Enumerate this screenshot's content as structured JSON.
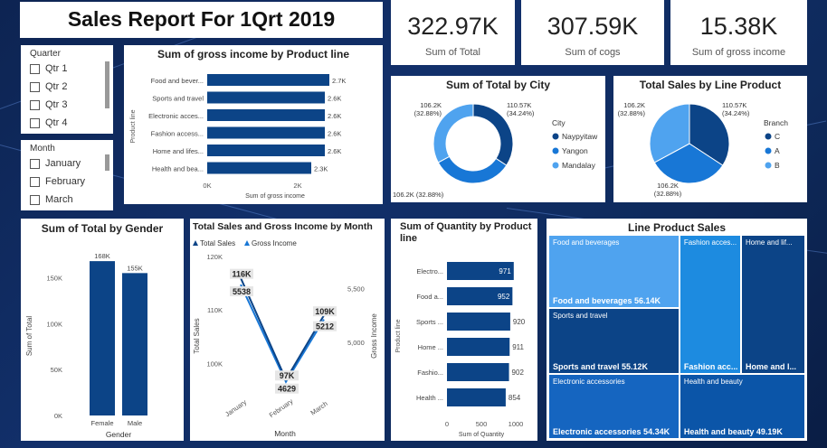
{
  "report_title": "Sales Report For 1Qrt 2019",
  "kpis": [
    {
      "value": "322.97K",
      "label": "Sum of Total"
    },
    {
      "value": "307.59K",
      "label": "Sum of cogs"
    },
    {
      "value": "15.38K",
      "label": "Sum of gross income"
    }
  ],
  "quarter_slicer": {
    "header": "Quarter",
    "items": [
      "Qtr 1",
      "Qtr 2",
      "Qtr 3",
      "Qtr 4"
    ]
  },
  "month_slicer": {
    "header": "Month",
    "items": [
      "January",
      "February",
      "March"
    ]
  },
  "colors": {
    "dark": "#0c4487",
    "mid": "#1877d6",
    "light": "#4fa3ef"
  },
  "chart_data": [
    {
      "id": "gross_income_by_product",
      "type": "bar",
      "orientation": "horizontal",
      "title": "Sum of gross income by Product line",
      "categories": [
        "Food and bever...",
        "Sports and travel",
        "Electronic acces...",
        "Fashion access...",
        "Home and lifes...",
        "Health and bea..."
      ],
      "values": [
        2.7,
        2.6,
        2.6,
        2.6,
        2.6,
        2.3
      ],
      "data_labels": [
        "2.7K",
        "2.6K",
        "2.6K",
        "2.6K",
        "2.6K",
        "2.3K"
      ],
      "xlabel": "Sum of gross income",
      "ylabel": "Product line",
      "xticks": [
        "0K",
        "2K"
      ],
      "xlim": [
        0,
        3.4
      ]
    },
    {
      "id": "total_by_city",
      "type": "pie",
      "donut": true,
      "title": "Sum of Total by City",
      "legend_title": "City",
      "categories": [
        "Naypyitaw",
        "Yangon",
        "Mandalay"
      ],
      "values": [
        110.57,
        106.2,
        106.2
      ],
      "labels": [
        "110.57K (34.24%)",
        "106.2K (32.88%)",
        "106.2K (32.88%)"
      ]
    },
    {
      "id": "total_sales_by_branch",
      "type": "pie",
      "donut": false,
      "title": "Total Sales by Line Product",
      "legend_title": "Branch",
      "categories": [
        "C",
        "A",
        "B"
      ],
      "values": [
        110.57,
        106.2,
        106.2
      ],
      "labels": [
        "110.57K (34.24%)",
        "106.2K (32.88%)",
        "106.2K (32.88%)"
      ]
    },
    {
      "id": "total_by_gender",
      "type": "bar",
      "title": "Sum of Total by Gender",
      "categories": [
        "Female",
        "Male"
      ],
      "values": [
        168,
        155
      ],
      "data_labels": [
        "168K",
        "155K"
      ],
      "xlabel": "Gender",
      "ylabel": "Sum of Total",
      "yticks": [
        "0K",
        "50K",
        "100K",
        "150K"
      ],
      "ylim": [
        0,
        175
      ]
    },
    {
      "id": "sales_gross_by_month",
      "type": "line",
      "title": "Total Sales and Gross Income by Month",
      "categories": [
        "January",
        "February",
        "March"
      ],
      "series": [
        {
          "name": "Total Sales",
          "values": [
            116,
            97,
            109
          ],
          "data_labels": [
            "116K",
            "97K",
            "109K"
          ],
          "axis": "left"
        },
        {
          "name": "Gross Income",
          "values": [
            5538,
            4629,
            5212
          ],
          "data_labels": [
            "5538",
            "4629",
            "5212"
          ],
          "axis": "right"
        }
      ],
      "xlabel": "Month",
      "ylabel": "Total Sales",
      "y2label": "Gross Income",
      "yticks": [
        "100K",
        "110K",
        "120K"
      ],
      "ylim": [
        94,
        120
      ],
      "y2ticks": [
        "5,000",
        "5,500"
      ],
      "y2lim": [
        4500,
        5800
      ]
    },
    {
      "id": "quantity_by_product",
      "type": "bar",
      "orientation": "horizontal",
      "title": "Sum of Quantity by Product line",
      "categories": [
        "Electro...",
        "Food a...",
        "Sports ...",
        "Home ...",
        "Fashio...",
        "Health ..."
      ],
      "values": [
        971,
        952,
        920,
        911,
        902,
        854
      ],
      "data_labels": [
        "971",
        "952",
        "920",
        "911",
        "902",
        "854"
      ],
      "xlabel": "Sum of Quantity",
      "ylabel": "Product line",
      "xticks": [
        "0",
        "500",
        "1000"
      ],
      "xlim": [
        0,
        1000
      ]
    },
    {
      "id": "line_product_sales",
      "type": "treemap",
      "title": "Line Product Sales",
      "items": [
        {
          "name": "Food and beverages",
          "label": "Food and beverages 56.14K",
          "value": 56.14
        },
        {
          "name": "Sports and travel",
          "label": "Sports and travel 55.12K",
          "value": 55.12
        },
        {
          "name": "Electronic accessories",
          "label": "Electronic accessories 54.34K",
          "value": 54.34
        },
        {
          "name": "Fashion acces...",
          "label": "Fashion acc...",
          "value": 54.31
        },
        {
          "name": "Home and lif...",
          "label": "Home and l...",
          "value": 53.86
        },
        {
          "name": "Health and beauty",
          "label": "Health and beauty 49.19K",
          "value": 49.19
        }
      ]
    }
  ]
}
